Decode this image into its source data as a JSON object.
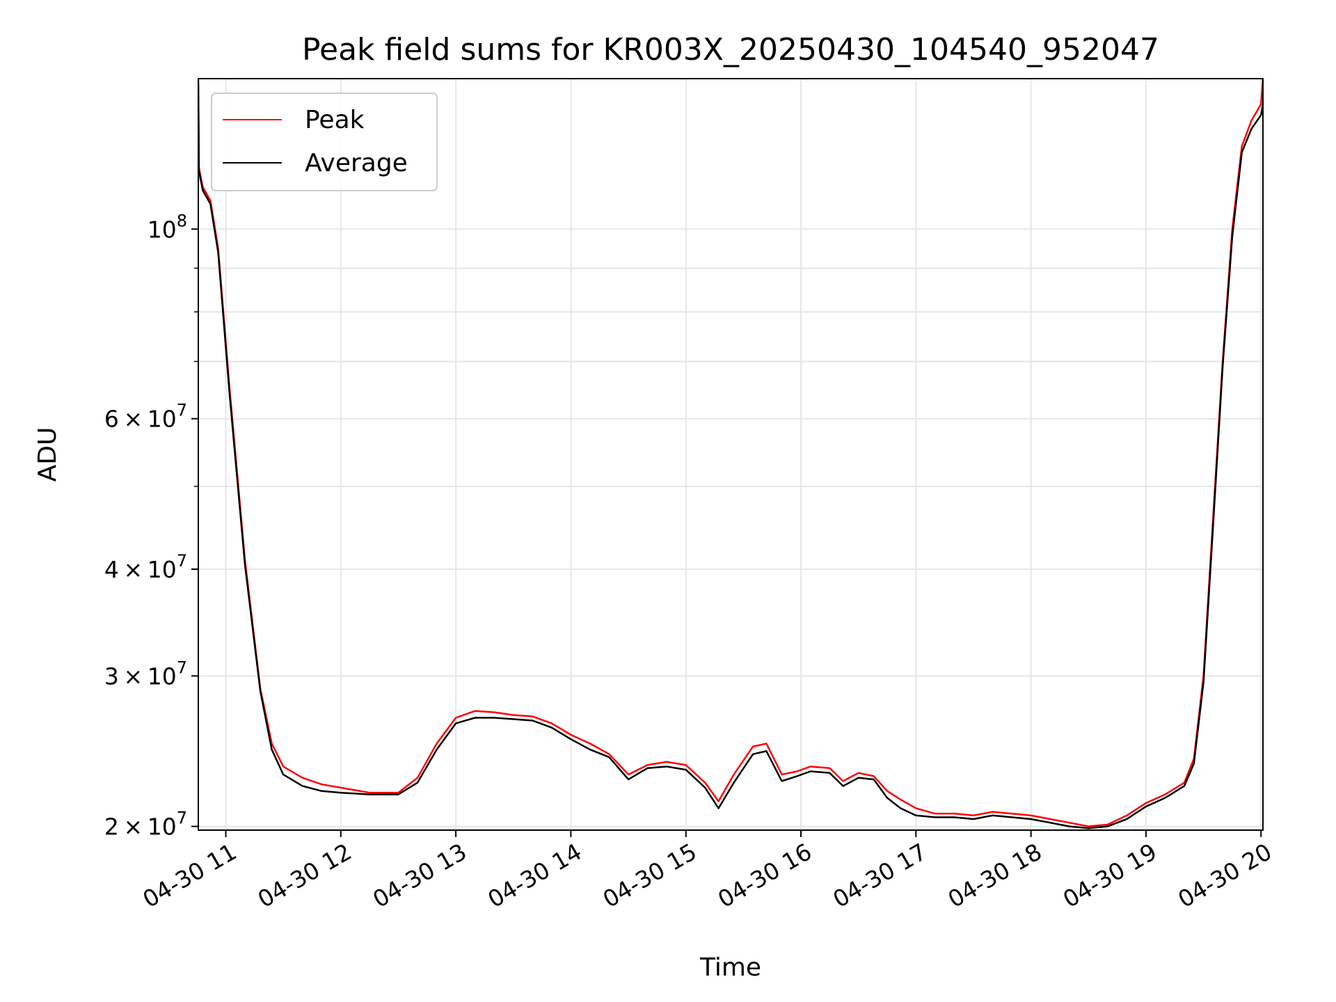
{
  "chart_data": {
    "type": "line",
    "title": "Peak field sums for KR003X_20250430_104540_952047",
    "xlabel": "Time",
    "ylabel": "ADU",
    "yscale": "log",
    "xlim": [
      "2025-04-30T10:45:40",
      "2025-04-30T20:01:00"
    ],
    "ylim": [
      19800000,
      150000000
    ],
    "x_ticks": [
      "04-30 11",
      "04-30 12",
      "04-30 13",
      "04-30 14",
      "04-30 15",
      "04-30 16",
      "04-30 17",
      "04-30 18",
      "04-30 19",
      "04-30 20"
    ],
    "y_ticks": [
      {
        "value": 20000000,
        "base": "2",
        "exp": "7"
      },
      {
        "value": 30000000,
        "base": "3",
        "exp": "7"
      },
      {
        "value": 40000000,
        "base": "4",
        "exp": "7"
      },
      {
        "value": 60000000,
        "base": "6",
        "exp": "7"
      },
      {
        "value": 100000000,
        "base": "",
        "exp": "8"
      }
    ],
    "y_minor_ticks": [
      50000000,
      70000000,
      80000000,
      90000000
    ],
    "grid": true,
    "legend_position": "top-left",
    "series": [
      {
        "name": "Peak",
        "color": "#ff0000",
        "x": [
          "2025-04-30T10:45:40",
          "2025-04-30T10:46:00",
          "2025-04-30T10:48:00",
          "2025-04-30T10:52:00",
          "2025-04-30T10:56:00",
          "2025-04-30T11:02:00",
          "2025-04-30T11:10:00",
          "2025-04-30T11:18:00",
          "2025-04-30T11:24:00",
          "2025-04-30T11:30:00",
          "2025-04-30T11:40:00",
          "2025-04-30T11:50:00",
          "2025-04-30T12:00:00",
          "2025-04-30T12:15:00",
          "2025-04-30T12:30:00",
          "2025-04-30T12:40:00",
          "2025-04-30T12:50:00",
          "2025-04-30T13:00:00",
          "2025-04-30T13:10:00",
          "2025-04-30T13:20:00",
          "2025-04-30T13:30:00",
          "2025-04-30T13:40:00",
          "2025-04-30T13:50:00",
          "2025-04-30T14:00:00",
          "2025-04-30T14:10:00",
          "2025-04-30T14:20:00",
          "2025-04-30T14:30:00",
          "2025-04-30T14:40:00",
          "2025-04-30T14:50:00",
          "2025-04-30T15:00:00",
          "2025-04-30T15:10:00",
          "2025-04-30T15:17:00",
          "2025-04-30T15:25:00",
          "2025-04-30T15:35:00",
          "2025-04-30T15:42:00",
          "2025-04-30T15:50:00",
          "2025-04-30T15:58:00",
          "2025-04-30T16:05:00",
          "2025-04-30T16:15:00",
          "2025-04-30T16:22:00",
          "2025-04-30T16:30:00",
          "2025-04-30T16:38:00",
          "2025-04-30T16:45:00",
          "2025-04-30T16:52:00",
          "2025-04-30T17:00:00",
          "2025-04-30T17:10:00",
          "2025-04-30T17:20:00",
          "2025-04-30T17:30:00",
          "2025-04-30T17:40:00",
          "2025-04-30T17:50:00",
          "2025-04-30T18:00:00",
          "2025-04-30T18:10:00",
          "2025-04-30T18:20:00",
          "2025-04-30T18:30:00",
          "2025-04-30T18:40:00",
          "2025-04-30T18:50:00",
          "2025-04-30T19:00:00",
          "2025-04-30T19:10:00",
          "2025-04-30T19:20:00",
          "2025-04-30T19:25:00",
          "2025-04-30T19:30:00",
          "2025-04-30T19:35:00",
          "2025-04-30T19:40:00",
          "2025-04-30T19:45:00",
          "2025-04-30T19:50:00",
          "2025-04-30T19:55:00",
          "2025-04-30T20:00:00",
          "2025-04-30T20:01:00"
        ],
        "y": [
          150000000,
          118000000,
          112000000,
          108000000,
          95000000,
          65000000,
          41000000,
          29000000,
          25000000,
          23500000,
          22800000,
          22400000,
          22200000,
          21900000,
          21900000,
          22800000,
          25000000,
          26800000,
          27300000,
          27200000,
          27000000,
          26900000,
          26400000,
          25600000,
          25000000,
          24300000,
          23000000,
          23600000,
          23800000,
          23600000,
          22500000,
          21400000,
          23000000,
          24800000,
          25000000,
          23000000,
          23200000,
          23500000,
          23400000,
          22600000,
          23100000,
          22900000,
          22000000,
          21500000,
          21000000,
          20700000,
          20700000,
          20600000,
          20800000,
          20700000,
          20600000,
          20400000,
          20200000,
          20000000,
          20100000,
          20600000,
          21300000,
          21800000,
          22500000,
          24000000,
          30000000,
          46000000,
          70000000,
          100000000,
          125000000,
          134000000,
          140000000,
          150000000
        ]
      },
      {
        "name": "Average",
        "color": "#000000",
        "x": [
          "2025-04-30T10:45:40",
          "2025-04-30T10:46:00",
          "2025-04-30T10:48:00",
          "2025-04-30T10:52:00",
          "2025-04-30T10:56:00",
          "2025-04-30T11:02:00",
          "2025-04-30T11:10:00",
          "2025-04-30T11:18:00",
          "2025-04-30T11:24:00",
          "2025-04-30T11:30:00",
          "2025-04-30T11:40:00",
          "2025-04-30T11:50:00",
          "2025-04-30T12:00:00",
          "2025-04-30T12:15:00",
          "2025-04-30T12:30:00",
          "2025-04-30T12:40:00",
          "2025-04-30T12:50:00",
          "2025-04-30T13:00:00",
          "2025-04-30T13:10:00",
          "2025-04-30T13:20:00",
          "2025-04-30T13:30:00",
          "2025-04-30T13:40:00",
          "2025-04-30T13:50:00",
          "2025-04-30T14:00:00",
          "2025-04-30T14:10:00",
          "2025-04-30T14:20:00",
          "2025-04-30T14:30:00",
          "2025-04-30T14:40:00",
          "2025-04-30T14:50:00",
          "2025-04-30T15:00:00",
          "2025-04-30T15:10:00",
          "2025-04-30T15:17:00",
          "2025-04-30T15:25:00",
          "2025-04-30T15:35:00",
          "2025-04-30T15:42:00",
          "2025-04-30T15:50:00",
          "2025-04-30T15:58:00",
          "2025-04-30T16:05:00",
          "2025-04-30T16:15:00",
          "2025-04-30T16:22:00",
          "2025-04-30T16:30:00",
          "2025-04-30T16:38:00",
          "2025-04-30T16:45:00",
          "2025-04-30T16:52:00",
          "2025-04-30T17:00:00",
          "2025-04-30T17:10:00",
          "2025-04-30T17:20:00",
          "2025-04-30T17:30:00",
          "2025-04-30T17:40:00",
          "2025-04-30T17:50:00",
          "2025-04-30T18:00:00",
          "2025-04-30T18:10:00",
          "2025-04-30T18:20:00",
          "2025-04-30T18:30:00",
          "2025-04-30T18:40:00",
          "2025-04-30T18:50:00",
          "2025-04-30T19:00:00",
          "2025-04-30T19:10:00",
          "2025-04-30T19:20:00",
          "2025-04-30T19:25:00",
          "2025-04-30T19:30:00",
          "2025-04-30T19:35:00",
          "2025-04-30T19:40:00",
          "2025-04-30T19:45:00",
          "2025-04-30T19:50:00",
          "2025-04-30T19:55:00",
          "2025-04-30T20:00:00",
          "2025-04-30T20:01:00"
        ],
        "y": [
          148000000,
          117000000,
          111000000,
          107000000,
          94000000,
          64000000,
          40500000,
          28800000,
          24600000,
          23000000,
          22300000,
          22000000,
          21900000,
          21800000,
          21800000,
          22500000,
          24600000,
          26400000,
          26800000,
          26800000,
          26700000,
          26600000,
          26100000,
          25300000,
          24600000,
          24100000,
          22700000,
          23400000,
          23500000,
          23300000,
          22200000,
          21000000,
          22500000,
          24300000,
          24500000,
          22600000,
          22900000,
          23200000,
          23100000,
          22300000,
          22800000,
          22700000,
          21600000,
          21000000,
          20600000,
          20500000,
          20500000,
          20400000,
          20600000,
          20500000,
          20400000,
          20200000,
          20000000,
          19900000,
          20000000,
          20400000,
          21100000,
          21600000,
          22300000,
          23700000,
          29500000,
          45000000,
          69000000,
          98000000,
          123000000,
          131000000,
          136000000,
          140000000
        ]
      }
    ]
  }
}
